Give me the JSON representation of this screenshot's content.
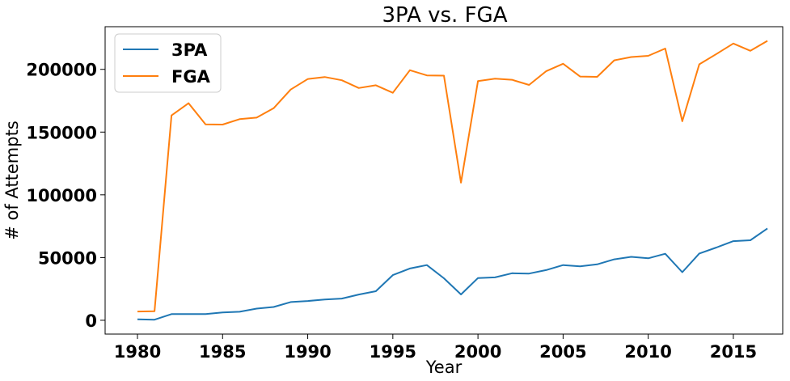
{
  "chart_data": {
    "type": "line",
    "title": "3PA vs. FGA",
    "xlabel": "Year",
    "ylabel": "# of Attempts",
    "xlim": [
      1978.1,
      2017.9
    ],
    "ylim": [
      -11000,
      234000
    ],
    "xticks": [
      1980,
      1985,
      1990,
      1995,
      2000,
      2005,
      2010,
      2015
    ],
    "yticks": [
      0,
      50000,
      100000,
      150000,
      200000
    ],
    "grid": false,
    "legend_position": "upper-left",
    "x": [
      1980,
      1981,
      1982,
      1983,
      1984,
      1985,
      1986,
      1987,
      1988,
      1989,
      1990,
      1991,
      1992,
      1993,
      1994,
      1995,
      1996,
      1997,
      1998,
      1999,
      2000,
      2001,
      2002,
      2003,
      2004,
      2005,
      2006,
      2007,
      2008,
      2009,
      2010,
      2011,
      2012,
      2013,
      2014,
      2015,
      2016,
      2017
    ],
    "series": [
      {
        "name": "3PA",
        "color": "#1f77b4",
        "values": [
          800,
          500,
          4900,
          4900,
          4900,
          6200,
          6800,
          9300,
          10600,
          14500,
          15400,
          16500,
          17300,
          20500,
          23200,
          36000,
          41300,
          44000,
          33500,
          20600,
          33700,
          34200,
          37500,
          37200,
          40000,
          44000,
          43000,
          44600,
          48600,
          50600,
          49400,
          53000,
          38300,
          53200,
          58000,
          63100,
          63800,
          73200
        ]
      },
      {
        "name": "FGA",
        "color": "#ff7f0e",
        "values": [
          7000,
          7200,
          163300,
          173000,
          156200,
          156000,
          160300,
          161500,
          169000,
          183900,
          192300,
          193900,
          191300,
          185100,
          187300,
          181300,
          199300,
          195200,
          195000,
          109700,
          190600,
          192600,
          191700,
          187600,
          198500,
          204500,
          194300,
          194000,
          207200,
          209800,
          210800,
          216600,
          158600,
          204000,
          212200,
          220600,
          214800,
          222700
        ]
      }
    ]
  }
}
